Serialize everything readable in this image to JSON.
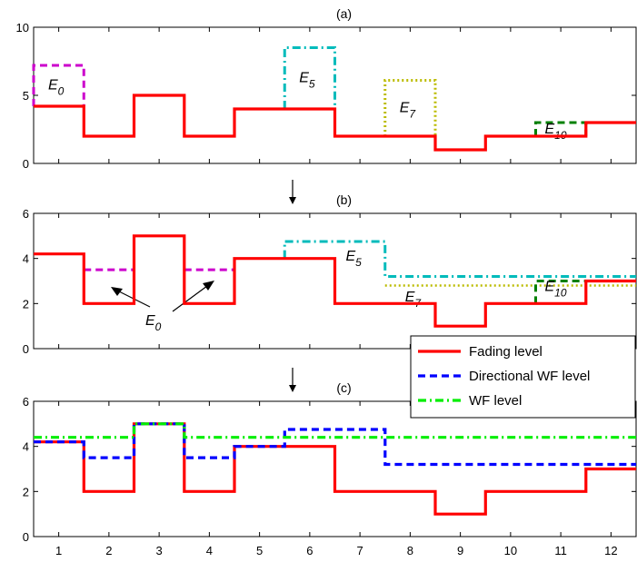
{
  "colors": {
    "fading": "#ff0000",
    "directional_wf": "#0000ff",
    "wf": "#00ee00",
    "magenta": "#cc00cc",
    "cyan": "#00bbbb",
    "olive": "#bbbb00",
    "darkgreen": "#008000"
  },
  "chart_data": [
    {
      "type": "line",
      "panel_label": "(a)",
      "x_categories": [
        "1",
        "2",
        "3",
        "4",
        "5",
        "6",
        "7",
        "8",
        "9",
        "10",
        "11",
        "12"
      ],
      "ylim": [
        0,
        10
      ],
      "yticks": [
        "0",
        "5",
        "10"
      ],
      "series": [
        {
          "name": "Fading level",
          "style": "step-solid",
          "color": "fading",
          "values": [
            4.2,
            2,
            5,
            2,
            4,
            4,
            2,
            2,
            1,
            2,
            2,
            3
          ]
        }
      ],
      "energy_blocks": [
        {
          "label": "E",
          "sub": "0",
          "color": "magenta",
          "style": "dashed",
          "x": [
            1,
            1
          ],
          "level": 7.2
        },
        {
          "label": "E",
          "sub": "5",
          "color": "cyan",
          "style": "dashdot",
          "x": [
            6,
            6
          ],
          "level": 8.5
        },
        {
          "label": "E",
          "sub": "7",
          "color": "olive",
          "style": "dotted",
          "x": [
            8,
            8
          ],
          "level": 6.1
        },
        {
          "label": "E",
          "sub": "10",
          "color": "darkgreen",
          "style": "dashed",
          "x": [
            11,
            11
          ],
          "level": 3.0
        }
      ]
    },
    {
      "type": "line",
      "panel_label": "(b)",
      "x_categories": [
        "1",
        "2",
        "3",
        "4",
        "5",
        "6",
        "7",
        "8",
        "9",
        "10",
        "11",
        "12"
      ],
      "ylim": [
        0,
        6
      ],
      "yticks": [
        "0",
        "2",
        "4",
        "6"
      ],
      "series": [
        {
          "name": "Fading level",
          "style": "step-solid",
          "color": "fading",
          "values": [
            4.2,
            2,
            5,
            2,
            4,
            4,
            2,
            2,
            1,
            2,
            2,
            3
          ]
        }
      ],
      "water_levels": [
        {
          "label": "E",
          "sub": "0",
          "color": "magenta",
          "style": "dashed",
          "x": [
            2,
            4
          ],
          "level": 3.5
        },
        {
          "label": "E",
          "sub": "5",
          "color": "cyan",
          "style": "dashdot",
          "x": [
            6,
            12
          ],
          "level": 4.75,
          "x_drop": 8,
          "level2": 3.2
        },
        {
          "label": "E",
          "sub": "7",
          "color": "olive",
          "style": "dotted",
          "x": [
            8,
            12
          ],
          "level": 2.8
        },
        {
          "label": "E",
          "sub": "10",
          "color": "darkgreen",
          "style": "dashed",
          "x": [
            11,
            11
          ],
          "level": 3.0
        }
      ]
    },
    {
      "type": "line",
      "panel_label": "(c)",
      "x_categories": [
        "1",
        "2",
        "3",
        "4",
        "5",
        "6",
        "7",
        "8",
        "9",
        "10",
        "11",
        "12"
      ],
      "ylim": [
        0,
        6
      ],
      "yticks": [
        "0",
        "2",
        "4",
        "6"
      ],
      "series": [
        {
          "name": "Fading level",
          "style": "step-solid",
          "color": "fading",
          "values": [
            4.2,
            2,
            5,
            2,
            4,
            4,
            2,
            2,
            1,
            2,
            2,
            3
          ]
        },
        {
          "name": "Directional WF level",
          "style": "step-dashed",
          "color": "directional_wf",
          "values": [
            4.2,
            3.5,
            5,
            3.5,
            4,
            4.75,
            4.75,
            3.2,
            3.2,
            3.2,
            3.2,
            3.2
          ]
        },
        {
          "name": "WF level",
          "style": "step-dashdot",
          "color": "wf",
          "values": [
            4.4,
            4.4,
            5,
            4.4,
            4.4,
            4.4,
            4.4,
            4.4,
            4.4,
            4.4,
            4.4,
            4.4
          ]
        }
      ]
    }
  ],
  "legend": {
    "entries": [
      {
        "label": "Fading level",
        "color": "fading",
        "style": "solid"
      },
      {
        "label": "Directional WF level",
        "color": "directional_wf",
        "style": "dashed"
      },
      {
        "label": "WF level",
        "color": "wf",
        "style": "dashdot"
      }
    ]
  }
}
